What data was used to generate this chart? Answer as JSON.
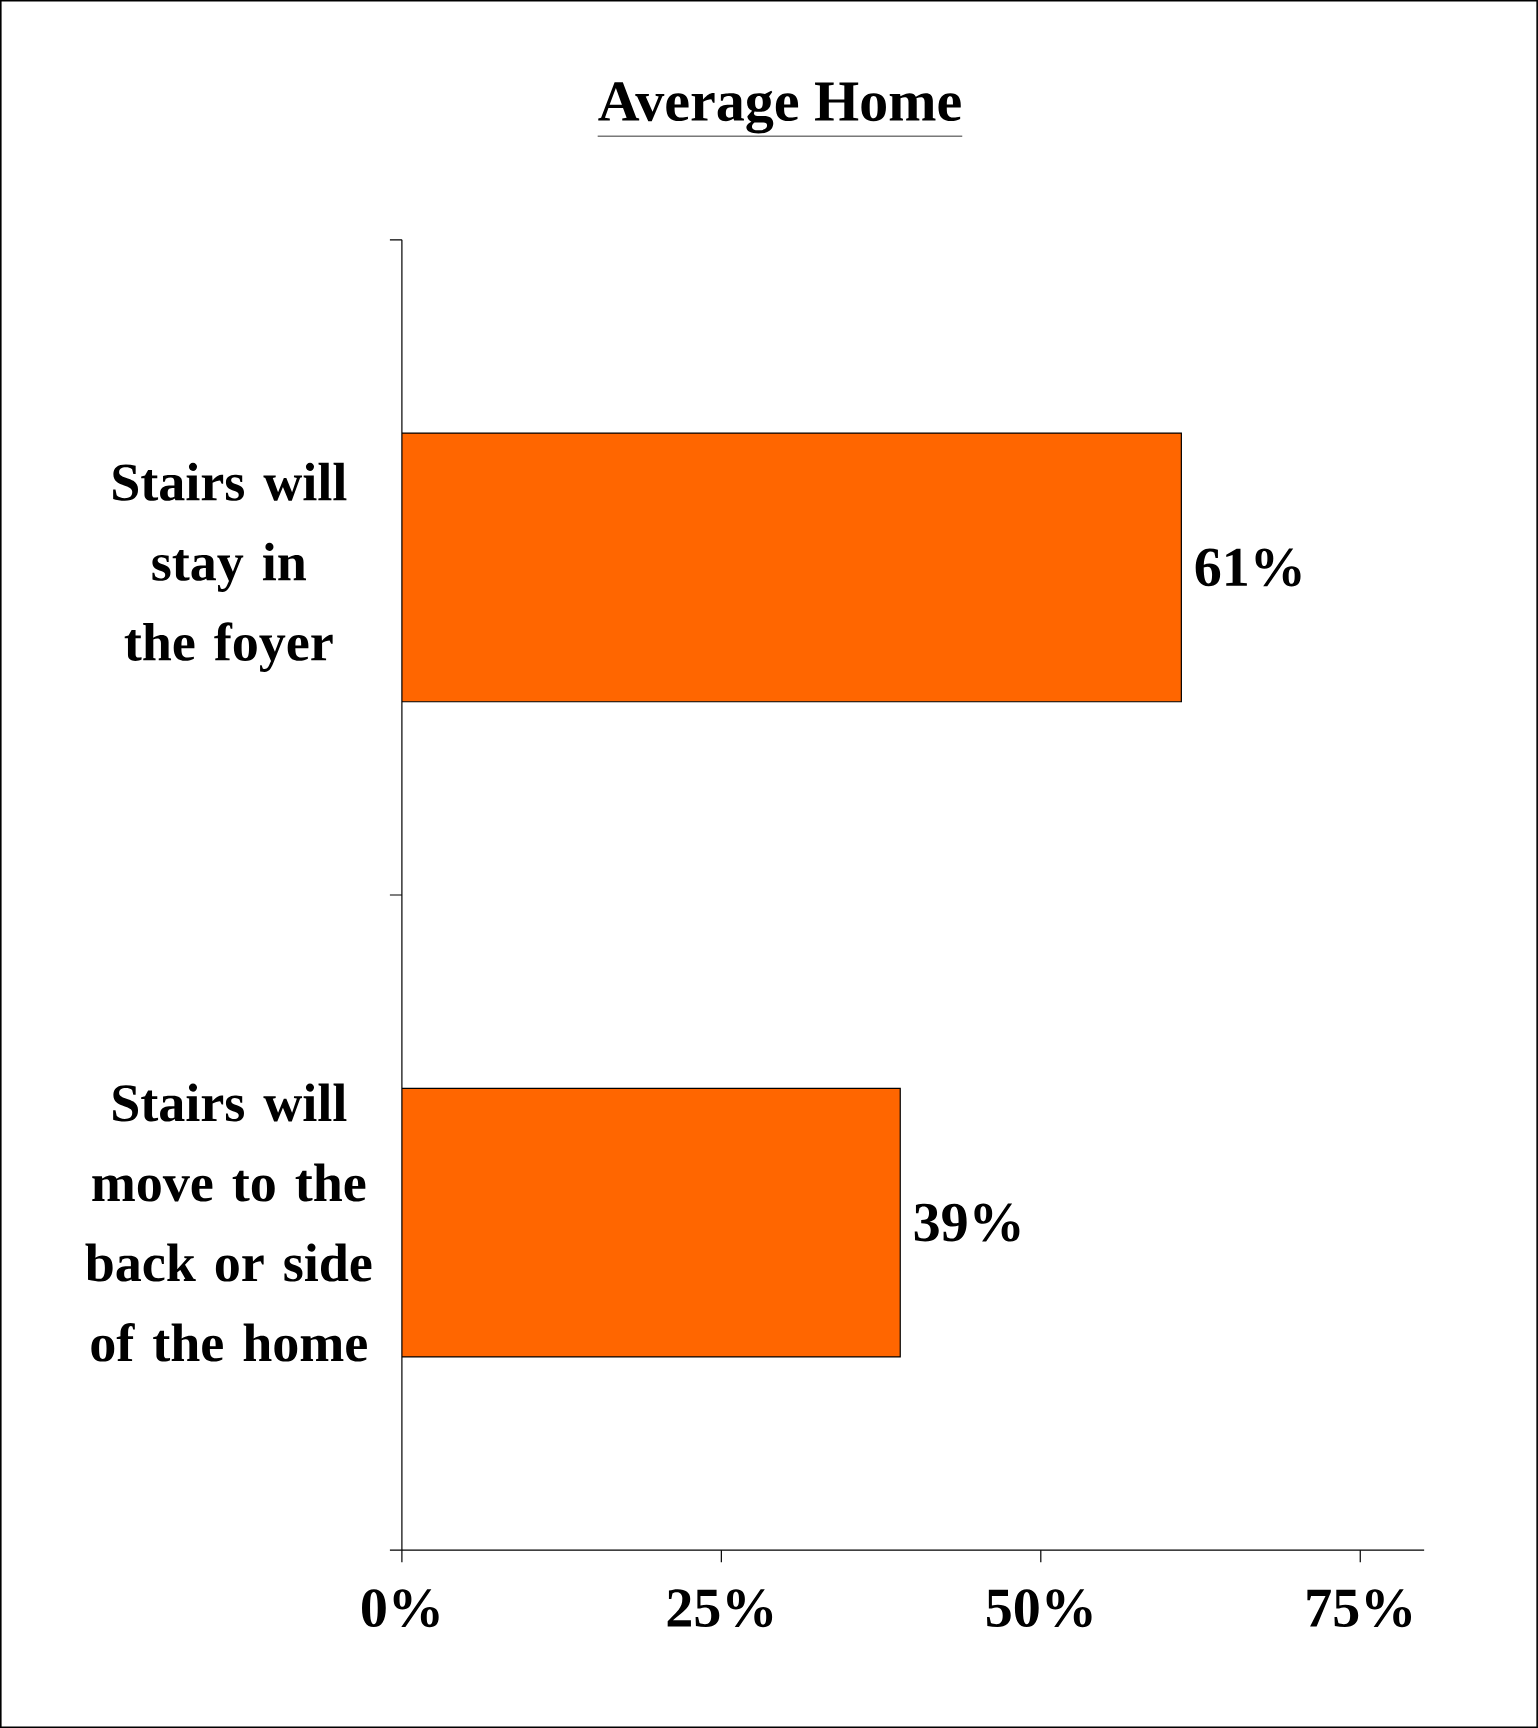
{
  "chart_data": {
    "type": "bar",
    "orientation": "horizontal",
    "title": "Average Home",
    "categories": [
      "Stairs will stay in the foyer",
      "Stairs will move to the back or side of the home"
    ],
    "values": [
      61,
      39
    ],
    "color": "#ff6600",
    "value_labels": [
      "61%",
      "39%"
    ],
    "xlim": [
      0,
      80
    ],
    "xticks": [
      {
        "value": 0,
        "label": "0%"
      },
      {
        "value": 25,
        "label": "25%"
      },
      {
        "value": 50,
        "label": "50%"
      },
      {
        "value": 75,
        "label": "75%"
      }
    ]
  }
}
